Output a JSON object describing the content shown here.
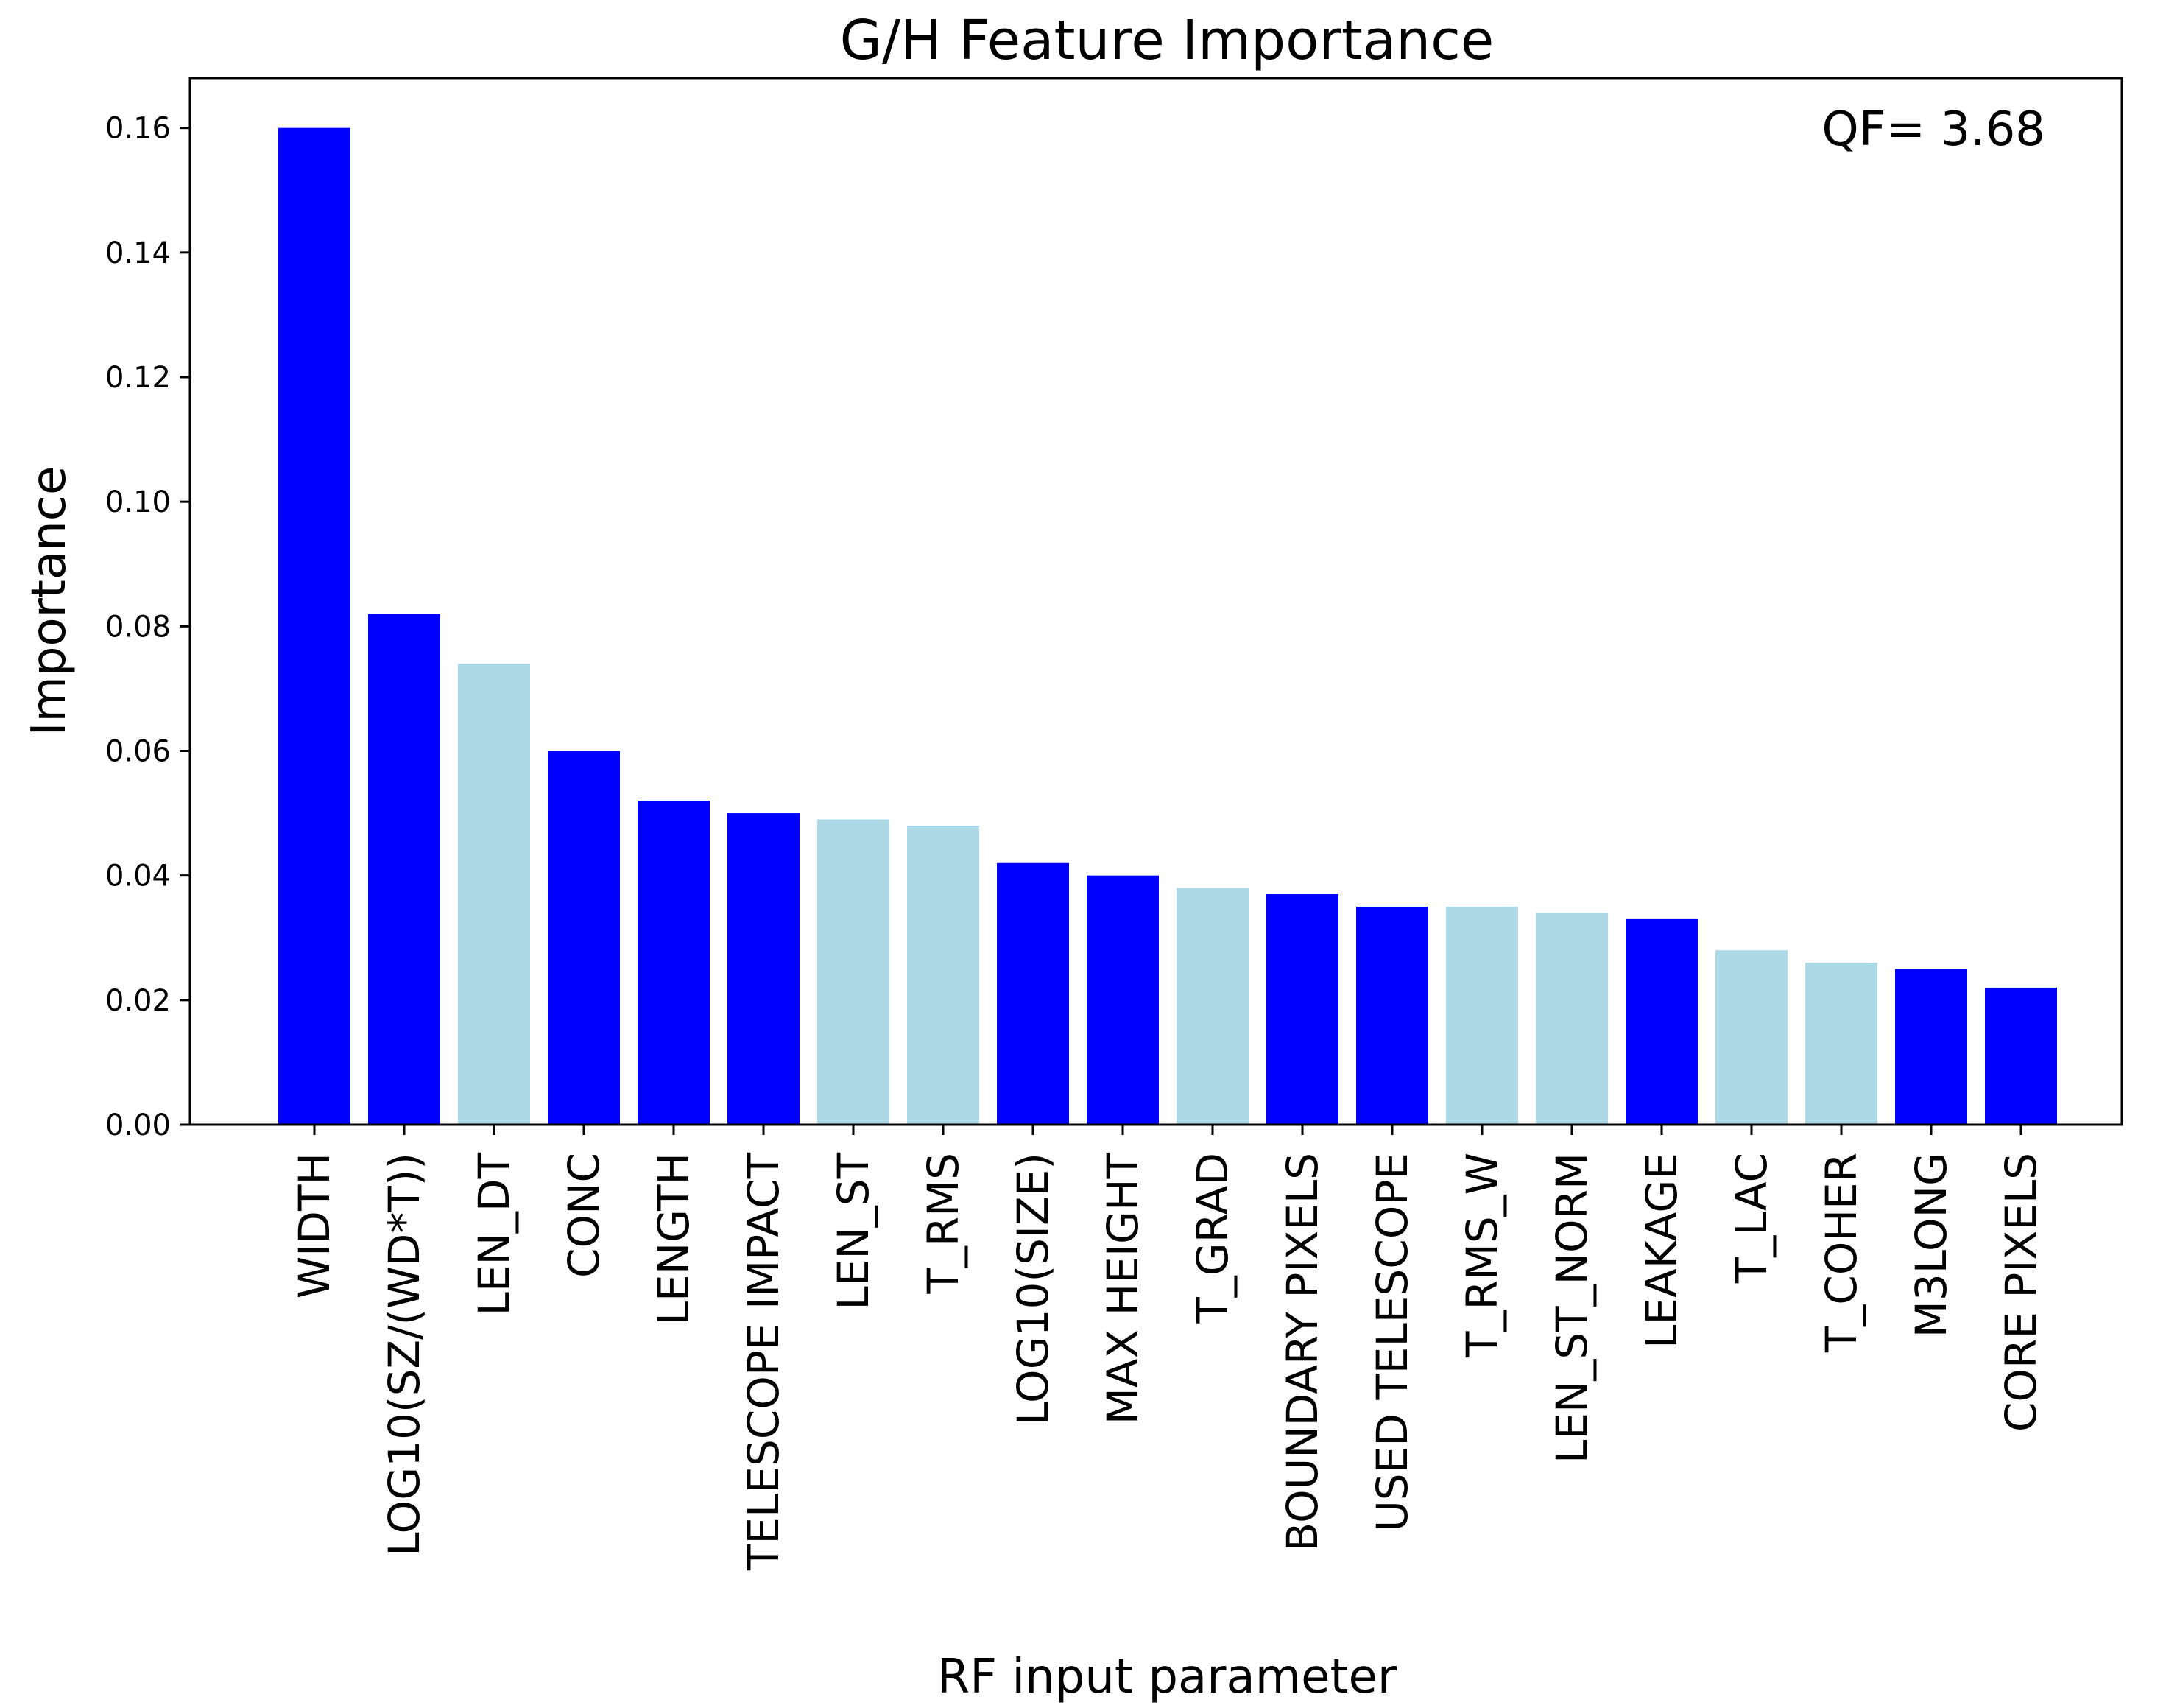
{
  "chart_data": {
    "type": "bar",
    "title": "G/H Feature Importance",
    "xlabel": "RF input parameter",
    "ylabel": "Importance",
    "annotation": "QF= 3.68",
    "ylim": [
      0,
      0.168
    ],
    "yticks": [
      "0.00",
      "0.02",
      "0.04",
      "0.06",
      "0.08",
      "0.10",
      "0.12",
      "0.14",
      "0.16"
    ],
    "grid": false,
    "categories": [
      "WIDTH",
      "LOG10(SZ/(WD*T))",
      "LEN_DT",
      "CONC",
      "LENGTH",
      "TELESCOPE IMPACT",
      "LEN_ST",
      "T_RMS",
      "LOG10(SIZE)",
      "MAX HEIGHT",
      "T_GRAD",
      "BOUNDARY PIXELS",
      "USED TELESCOPE",
      "T_RMS_W",
      "LEN_ST_NORM",
      "LEAKAGE",
      "T_LAC",
      "T_COHER",
      "M3LONG",
      "CORE PIXELS"
    ],
    "values": [
      0.16,
      0.082,
      0.074,
      0.06,
      0.052,
      0.05,
      0.049,
      0.048,
      0.042,
      0.04,
      0.038,
      0.037,
      0.035,
      0.035,
      0.034,
      0.033,
      0.028,
      0.026,
      0.025,
      0.022
    ],
    "bar_colors": [
      "#0000ff",
      "#0000ff",
      "#add8e6",
      "#0000ff",
      "#0000ff",
      "#0000ff",
      "#add8e6",
      "#add8e6",
      "#0000ff",
      "#0000ff",
      "#add8e6",
      "#0000ff",
      "#0000ff",
      "#add8e6",
      "#add8e6",
      "#0000ff",
      "#add8e6",
      "#add8e6",
      "#0000ff",
      "#0000ff"
    ]
  }
}
